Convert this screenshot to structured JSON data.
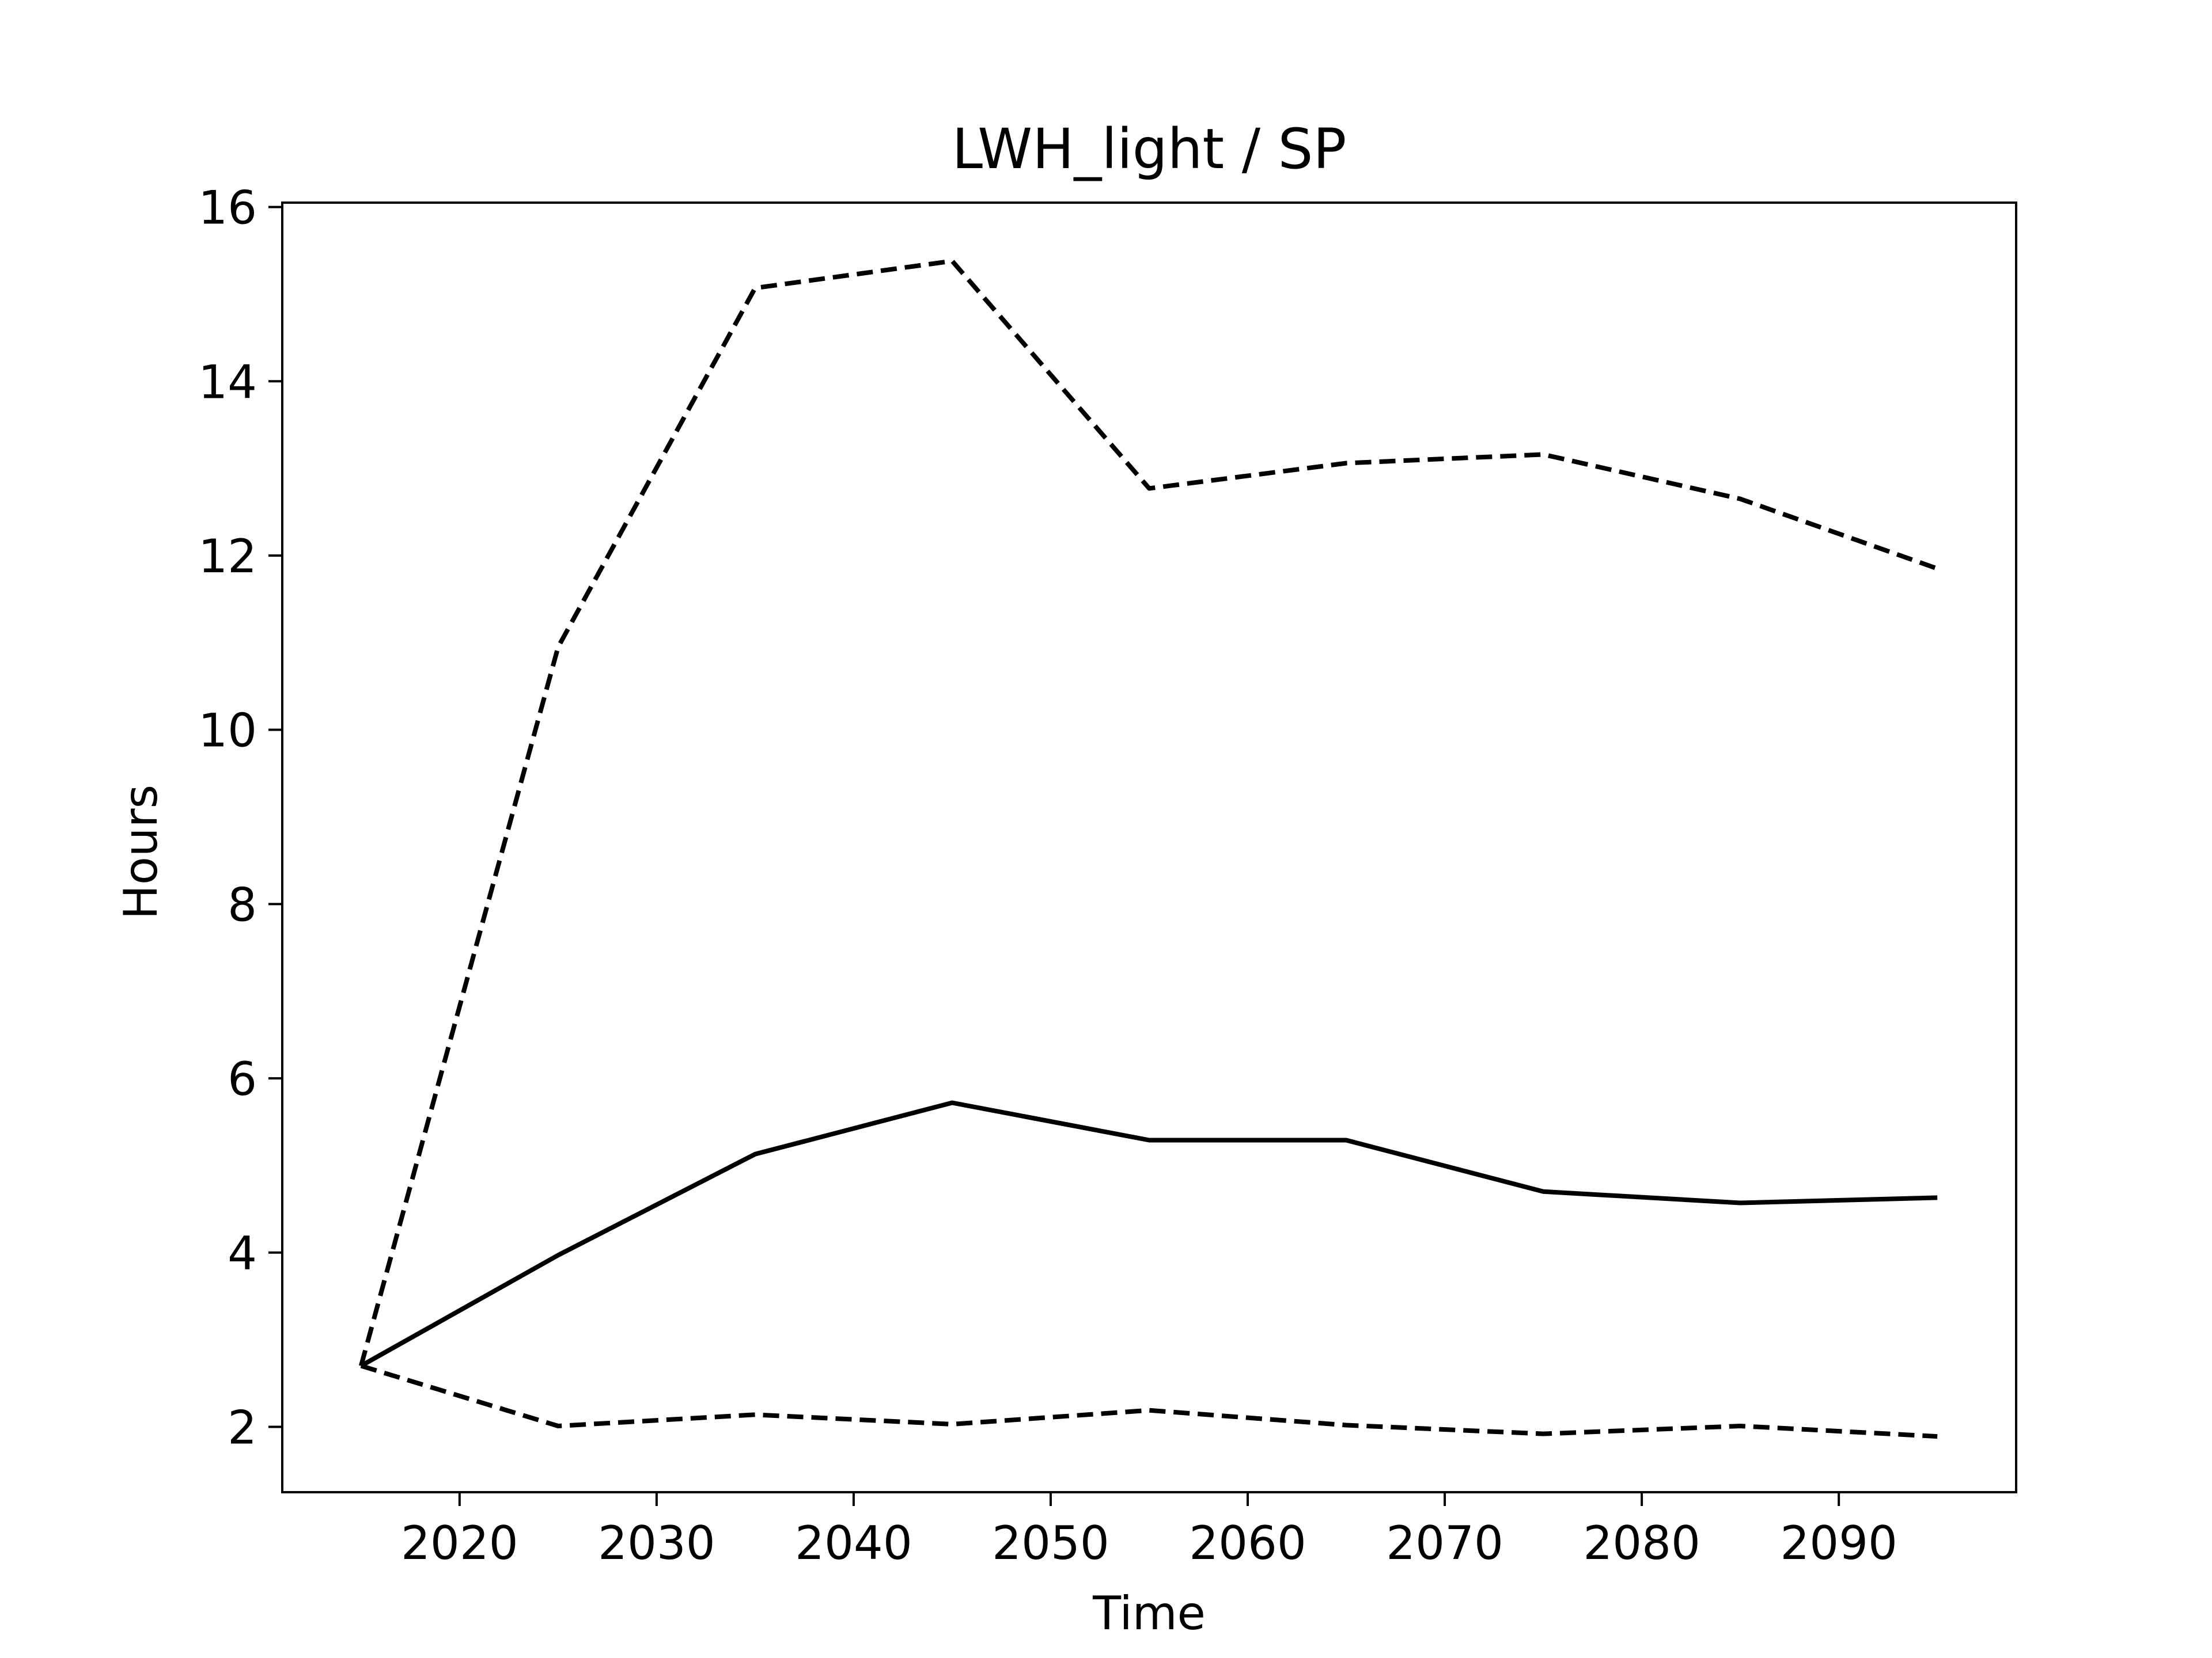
{
  "chart_data": {
    "type": "line",
    "title": "LWH_light / SP",
    "xlabel": "Time",
    "ylabel": "Hours",
    "x": [
      2015,
      2025,
      2035,
      2045,
      2055,
      2065,
      2075,
      2085,
      2095
    ],
    "xlim": [
      2011,
      2099
    ],
    "ylim": [
      1.25,
      16.05
    ],
    "xticks": [
      2020,
      2030,
      2040,
      2050,
      2060,
      2070,
      2080,
      2090
    ],
    "yticks": [
      2,
      4,
      6,
      8,
      10,
      12,
      14,
      16
    ],
    "grid": false,
    "legend": "none",
    "series": [
      {
        "style": "solid",
        "color": "#000000",
        "values": [
          2.7,
          3.97,
          5.13,
          5.72,
          5.29,
          5.29,
          4.7,
          4.57,
          4.63
        ]
      },
      {
        "style": "dashed",
        "color": "#000000",
        "values": [
          2.7,
          10.95,
          15.07,
          15.38,
          12.77,
          13.06,
          13.16,
          12.65,
          11.85
        ]
      },
      {
        "style": "dashed",
        "color": "#000000",
        "values": [
          2.7,
          2.01,
          2.14,
          2.03,
          2.19,
          2.02,
          1.92,
          2.01,
          1.89
        ]
      }
    ]
  }
}
